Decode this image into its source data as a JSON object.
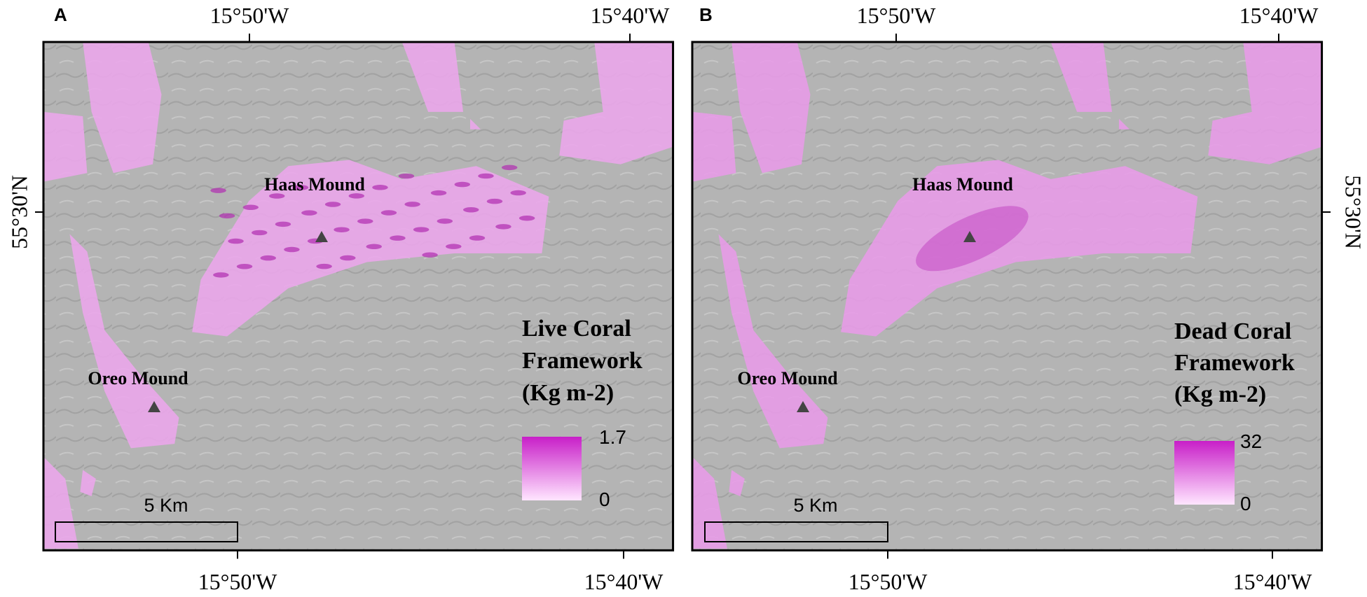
{
  "panels": [
    {
      "label": "A",
      "top_ticks": [
        "15°50'W",
        "15°40'W"
      ],
      "bottom_ticks": [
        "15°50'W",
        "15°40'W"
      ],
      "lat_tick": "55°30'N",
      "sites": [
        "Haas Mound",
        "Oreo Mound"
      ],
      "legend": {
        "title": [
          "Live Coral",
          "Framework",
          "(Kg m-2)"
        ],
        "max": 1.7,
        "min": 0
      },
      "scale_bar": "5 Km"
    },
    {
      "label": "B",
      "top_ticks": [
        "15°50'W",
        "15°40'W"
      ],
      "bottom_ticks": [
        "15°50'W",
        "15°40'W"
      ],
      "lat_tick": "55°30'N",
      "sites": [
        "Haas Mound",
        "Oreo Mound"
      ],
      "legend": {
        "title": [
          "Dead Coral",
          "Framework",
          "(Kg m-2)"
        ],
        "max": 32,
        "min": 0
      },
      "scale_bar": "5 Km"
    }
  ]
}
